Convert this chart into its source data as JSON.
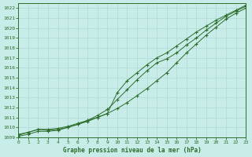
{
  "title": "Graphe pression niveau de la mer (hPa)",
  "xlim": [
    0,
    23
  ],
  "ylim": [
    1009,
    1022.5
  ],
  "yticks": [
    1009,
    1010,
    1011,
    1012,
    1013,
    1014,
    1015,
    1016,
    1017,
    1018,
    1019,
    1020,
    1021,
    1022
  ],
  "xticks": [
    0,
    1,
    2,
    3,
    4,
    5,
    6,
    7,
    8,
    9,
    10,
    11,
    12,
    13,
    14,
    15,
    16,
    17,
    18,
    19,
    20,
    21,
    22,
    23
  ],
  "bg_color": "#c8ece8",
  "grid_color": "#b0d8d4",
  "line_color": "#2d6e2d",
  "line1_y": [
    1009.3,
    1009.5,
    1009.8,
    1009.8,
    1009.9,
    1010.1,
    1010.4,
    1010.7,
    1011.0,
    1011.4,
    1011.9,
    1012.5,
    1013.2,
    1013.9,
    1014.7,
    1015.5,
    1016.5,
    1017.5,
    1018.4,
    1019.3,
    1020.1,
    1020.9,
    1021.5,
    1022.0
  ],
  "line2_y": [
    1009.2,
    1009.5,
    1009.8,
    1009.7,
    1009.8,
    1010.0,
    1010.3,
    1010.7,
    1011.2,
    1011.8,
    1012.8,
    1013.8,
    1014.8,
    1015.7,
    1016.5,
    1016.9,
    1017.5,
    1018.3,
    1019.0,
    1019.8,
    1020.5,
    1021.2,
    1021.7,
    1022.2
  ],
  "line3_y": [
    1009.1,
    1009.3,
    1009.6,
    1009.6,
    1009.7,
    1010.0,
    1010.3,
    1010.6,
    1011.0,
    1011.4,
    1013.5,
    1014.7,
    1015.5,
    1016.3,
    1017.0,
    1017.5,
    1018.2,
    1018.9,
    1019.6,
    1020.2,
    1020.8,
    1021.3,
    1021.8,
    1022.3
  ]
}
